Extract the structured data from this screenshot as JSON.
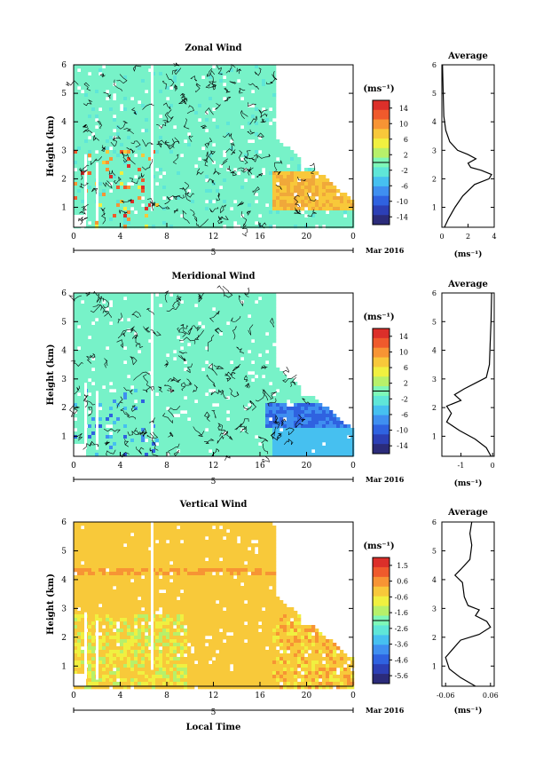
{
  "chart_data": [
    {
      "type": "heatmap",
      "title": "Zonal Wind",
      "ylabel": "Height (km)",
      "xticks": [
        "0",
        "4",
        "8",
        "12",
        "16",
        "20",
        "0"
      ],
      "yticks": [
        "1",
        "2",
        "3",
        "4",
        "5",
        "6"
      ],
      "date_marker": "5",
      "date_label": "Mar 2016",
      "ylim": [
        0.3,
        6.0
      ],
      "colorbar": {
        "unit": "(ms⁻¹)",
        "ticks": [
          "14",
          "10",
          "6",
          "2",
          "-2",
          "-6",
          "-10",
          "-14"
        ],
        "range": [
          -16,
          16
        ]
      },
      "profile": {
        "title": "Average",
        "xlabel": "(ms⁻¹)",
        "xticks": [
          "0",
          "2",
          "4"
        ],
        "xlim": [
          0,
          4
        ],
        "points": [
          [
            0.2,
            0.3
          ],
          [
            0.5,
            0.6
          ],
          [
            1.0,
            1.0
          ],
          [
            1.6,
            1.4
          ],
          [
            2.5,
            1.8
          ],
          [
            3.6,
            2.0
          ],
          [
            3.8,
            2.15
          ],
          [
            3.0,
            2.3
          ],
          [
            2.2,
            2.4
          ],
          [
            2.0,
            2.55
          ],
          [
            2.6,
            2.7
          ],
          [
            2.0,
            2.85
          ],
          [
            1.2,
            3.0
          ],
          [
            0.6,
            3.3
          ],
          [
            0.3,
            3.7
          ],
          [
            0.15,
            4.2
          ],
          [
            0.1,
            5.0
          ],
          [
            0.05,
            6.0
          ]
        ]
      }
    },
    {
      "type": "heatmap",
      "title": "Meridional Wind",
      "ylabel": "Height (km)",
      "xticks": [
        "0",
        "4",
        "8",
        "12",
        "16",
        "20",
        "0"
      ],
      "yticks": [
        "1",
        "2",
        "3",
        "4",
        "5",
        "6"
      ],
      "date_marker": "5",
      "date_label": "Mar 2016",
      "ylim": [
        0.3,
        6.0
      ],
      "colorbar": {
        "unit": "(ms⁻¹)",
        "ticks": [
          "14",
          "10",
          "6",
          "2",
          "-2",
          "-6",
          "-10",
          "-14"
        ],
        "range": [
          -16,
          16
        ]
      },
      "profile": {
        "title": "Average",
        "xlabel": "(ms⁻¹)",
        "xticks": [
          "-1",
          "0"
        ],
        "xlim": [
          -1.6,
          0.05
        ],
        "points": [
          [
            -0.05,
            0.3
          ],
          [
            -0.2,
            0.6
          ],
          [
            -0.55,
            0.9
          ],
          [
            -1.05,
            1.2
          ],
          [
            -1.45,
            1.5
          ],
          [
            -1.3,
            1.8
          ],
          [
            -1.45,
            2.05
          ],
          [
            -1.0,
            2.25
          ],
          [
            -1.2,
            2.45
          ],
          [
            -0.9,
            2.65
          ],
          [
            -0.55,
            2.85
          ],
          [
            -0.2,
            3.05
          ],
          [
            -0.1,
            3.5
          ],
          [
            -0.08,
            4.2
          ],
          [
            -0.05,
            5.0
          ],
          [
            -0.03,
            6.0
          ]
        ]
      }
    },
    {
      "type": "heatmap",
      "title": "Vertical Wind",
      "ylabel": "Height (km)",
      "xlabel": "Local Time",
      "xticks": [
        "0",
        "4",
        "8",
        "12",
        "16",
        "20",
        "0"
      ],
      "yticks": [
        "1",
        "2",
        "3",
        "4",
        "5",
        "6"
      ],
      "date_marker": "5",
      "date_label": "Mar 2016",
      "ylim": [
        0.3,
        6.0
      ],
      "colorbar": {
        "unit": "(ms⁻¹)",
        "ticks": [
          "1.5",
          "0.6",
          "-0.6",
          "-1.6",
          "-2.6",
          "-3.6",
          "-4.6",
          "-5.6"
        ],
        "range": [
          -6,
          2
        ]
      },
      "profile": {
        "title": "Average",
        "xlabel": "(ms⁻¹)",
        "xticks": [
          "-0.06",
          "0.06"
        ],
        "xlim": [
          -0.07,
          0.07
        ],
        "points": [
          [
            0.02,
            0.3
          ],
          [
            -0.02,
            0.6
          ],
          [
            -0.05,
            0.9
          ],
          [
            -0.06,
            1.3
          ],
          [
            -0.04,
            1.6
          ],
          [
            -0.02,
            1.9
          ],
          [
            0.03,
            2.1
          ],
          [
            0.06,
            2.35
          ],
          [
            0.05,
            2.55
          ],
          [
            0.02,
            2.75
          ],
          [
            0.03,
            2.95
          ],
          [
            0.0,
            3.1
          ],
          [
            -0.01,
            3.4
          ],
          [
            -0.015,
            3.9
          ],
          [
            -0.035,
            4.15
          ],
          [
            -0.02,
            4.35
          ],
          [
            0.005,
            4.7
          ],
          [
            0.01,
            5.2
          ],
          [
            0.005,
            5.6
          ],
          [
            0.01,
            6.0
          ]
        ]
      }
    }
  ]
}
